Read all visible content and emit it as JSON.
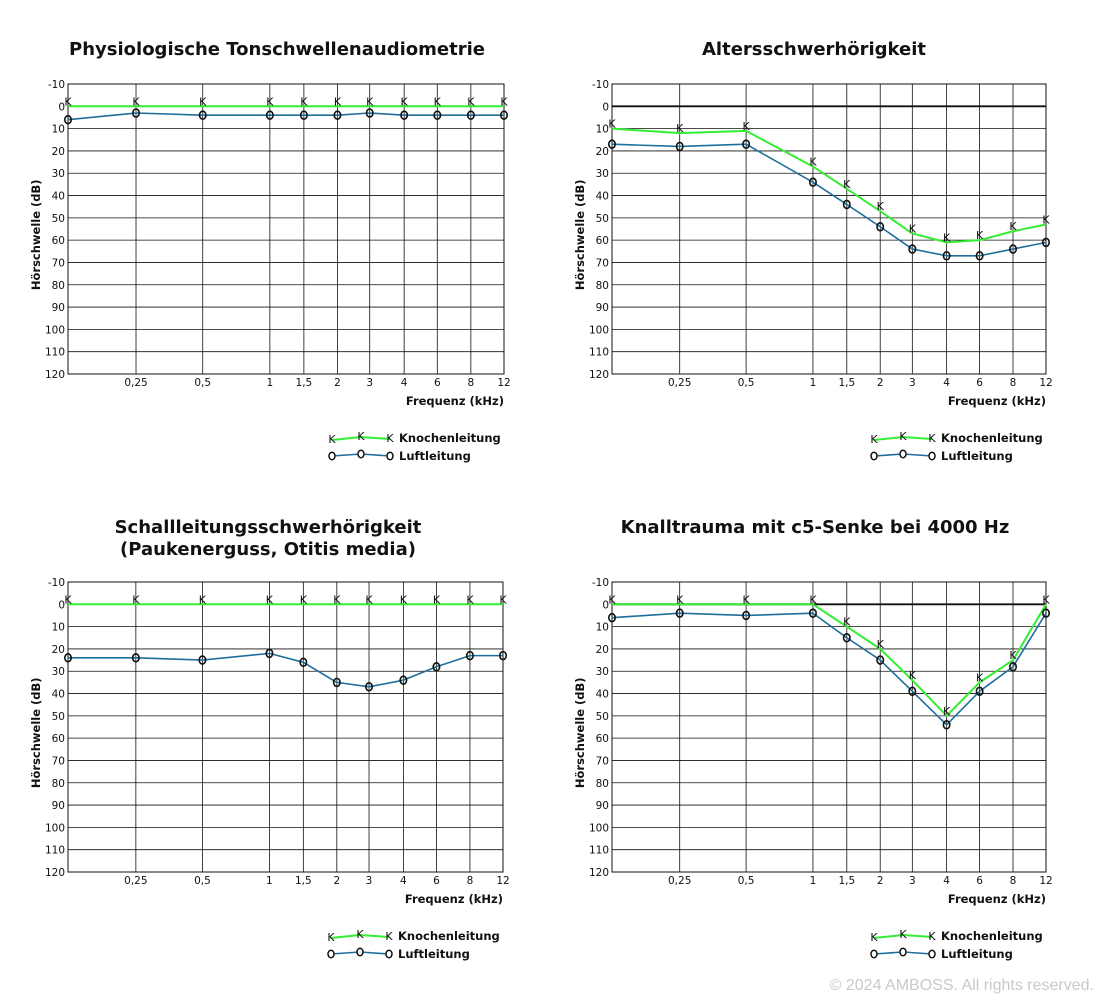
{
  "copyright": "© 2024 AMBOSS. All rights reserved.",
  "colors": {
    "knochen": "#33ee33",
    "luft": "#1e6f9c",
    "grid": "#111111",
    "copyright": "#c9c9c9"
  },
  "charts": [
    {
      "title_lines": [
        "Physiologische Tonschwellenaudiometrie"
      ],
      "ylabel": "Hörschwelle (dB)",
      "xlabel": "Frequenz (kHz)",
      "yticks": [
        "-10",
        "0",
        "10",
        "20",
        "30",
        "40",
        "50",
        "60",
        "70",
        "80",
        "90",
        "100",
        "110",
        "120"
      ],
      "xticks": [
        "0,25",
        "0,5",
        "1",
        "1,5",
        "2",
        "3",
        "4",
        "6",
        "8",
        "12"
      ],
      "legend": {
        "knochen": "Knochenleitung",
        "luft": "Luftleitung",
        "knochen_marker": "K",
        "luft_marker": "O"
      }
    },
    {
      "title_lines": [
        "Altersschwerhörigkeit"
      ],
      "ylabel": "Hörschwelle (dB)",
      "xlabel": "Frequenz (kHz)",
      "yticks": [
        "-10",
        "0",
        "10",
        "20",
        "30",
        "40",
        "50",
        "60",
        "70",
        "80",
        "90",
        "100",
        "110",
        "120"
      ],
      "xticks": [
        "0,25",
        "0,5",
        "1",
        "1,5",
        "2",
        "3",
        "4",
        "6",
        "8",
        "12"
      ],
      "legend": {
        "knochen": "Knochenleitung",
        "luft": "Luftleitung",
        "knochen_marker": "K",
        "luft_marker": "O"
      }
    },
    {
      "title_lines": [
        "Schallleitungsschwerhörigkeit",
        "(Paukenerguss, Otitis media)"
      ],
      "ylabel": "Hörschwelle (dB)",
      "xlabel": "Frequenz (kHz)",
      "yticks": [
        "-10",
        "0",
        "10",
        "20",
        "30",
        "40",
        "50",
        "60",
        "70",
        "80",
        "90",
        "100",
        "110",
        "120"
      ],
      "xticks": [
        "0,25",
        "0,5",
        "1",
        "1,5",
        "2",
        "3",
        "4",
        "6",
        "8",
        "12"
      ],
      "legend": {
        "knochen": "Knochenleitung",
        "luft": "Luftleitung",
        "knochen_marker": "K",
        "luft_marker": "O"
      }
    },
    {
      "title_lines": [
        "Knalltrauma mit c5-Senke bei 4000 Hz"
      ],
      "ylabel": "Hörschwelle (dB)",
      "xlabel": "Frequenz (kHz)",
      "yticks": [
        "-10",
        "0",
        "10",
        "20",
        "30",
        "40",
        "50",
        "60",
        "70",
        "80",
        "90",
        "100",
        "110",
        "120"
      ],
      "xticks": [
        "0,25",
        "0,5",
        "1",
        "1,5",
        "2",
        "3",
        "4",
        "6",
        "8",
        "12"
      ],
      "legend": {
        "knochen": "Knochenleitung",
        "luft": "Luftleitung",
        "knochen_marker": "K",
        "luft_marker": "O"
      }
    }
  ],
  "chart_data": [
    {
      "type": "line",
      "title": "Physiologische Tonschwellenaudiometrie",
      "xlabel": "Frequenz (kHz)",
      "ylabel": "Hörschwelle (dB)",
      "x": [
        "",
        "0,25",
        "0,5",
        "1",
        "1,5",
        "2",
        "3",
        "4",
        "6",
        "8",
        "12"
      ],
      "ylim": [
        120,
        -10
      ],
      "y_inverted": true,
      "zero_line": false,
      "grid": true,
      "legend_position": "bottom-right",
      "series": [
        {
          "name": "Knochenleitung",
          "marker": "K",
          "values": [
            0,
            0,
            0,
            0,
            0,
            0,
            0,
            0,
            0,
            0,
            0
          ]
        },
        {
          "name": "Luftleitung",
          "marker": "O",
          "values": [
            6,
            3,
            4,
            4,
            4,
            4,
            3,
            4,
            4,
            4,
            4
          ]
        }
      ]
    },
    {
      "type": "line",
      "title": "Altersschwerhörigkeit",
      "xlabel": "Frequenz (kHz)",
      "ylabel": "Hörschwelle (dB)",
      "x": [
        "",
        "0,25",
        "0,5",
        "1",
        "1,5",
        "2",
        "3",
        "4",
        "6",
        "8",
        "12"
      ],
      "ylim": [
        120,
        -10
      ],
      "y_inverted": true,
      "zero_line": true,
      "grid": true,
      "legend_position": "bottom-right",
      "series": [
        {
          "name": "Knochenleitung",
          "marker": "K",
          "values": [
            10,
            12,
            11,
            27,
            37,
            47,
            57,
            61,
            60,
            56,
            53
          ]
        },
        {
          "name": "Luftleitung",
          "marker": "O",
          "values": [
            17,
            18,
            17,
            34,
            44,
            54,
            64,
            67,
            67,
            64,
            61
          ]
        }
      ]
    },
    {
      "type": "line",
      "title": "Schallleitungsschwerhörigkeit (Paukenerguss, Otitis media)",
      "xlabel": "Frequenz (kHz)",
      "ylabel": "Hörschwelle (dB)",
      "x": [
        "",
        "0,25",
        "0,5",
        "1",
        "1,5",
        "2",
        "3",
        "4",
        "6",
        "8",
        "12"
      ],
      "ylim": [
        120,
        -10
      ],
      "y_inverted": true,
      "zero_line": false,
      "grid": true,
      "legend_position": "bottom-right",
      "series": [
        {
          "name": "Knochenleitung",
          "marker": "K",
          "values": [
            0,
            0,
            0,
            0,
            0,
            0,
            0,
            0,
            0,
            0,
            0
          ]
        },
        {
          "name": "Luftleitung",
          "marker": "O",
          "values": [
            24,
            24,
            25,
            22,
            26,
            35,
            37,
            34,
            28,
            23,
            23
          ]
        }
      ]
    },
    {
      "type": "line",
      "title": "Knalltrauma mit c5-Senke bei 4000 Hz",
      "xlabel": "Frequenz (kHz)",
      "ylabel": "Hörschwelle (dB)",
      "x": [
        "",
        "0,25",
        "0,5",
        "1",
        "1,5",
        "2",
        "3",
        "4",
        "6",
        "8",
        "12"
      ],
      "ylim": [
        120,
        -10
      ],
      "y_inverted": true,
      "zero_line": true,
      "grid": true,
      "legend_position": "bottom-right",
      "series": [
        {
          "name": "Knochenleitung",
          "marker": "K",
          "values": [
            0,
            0,
            0,
            0,
            10,
            20,
            34,
            50,
            35,
            25,
            0
          ]
        },
        {
          "name": "Luftleitung",
          "marker": "O",
          "values": [
            6,
            4,
            5,
            4,
            15,
            25,
            39,
            54,
            39,
            28,
            4
          ]
        }
      ]
    }
  ]
}
